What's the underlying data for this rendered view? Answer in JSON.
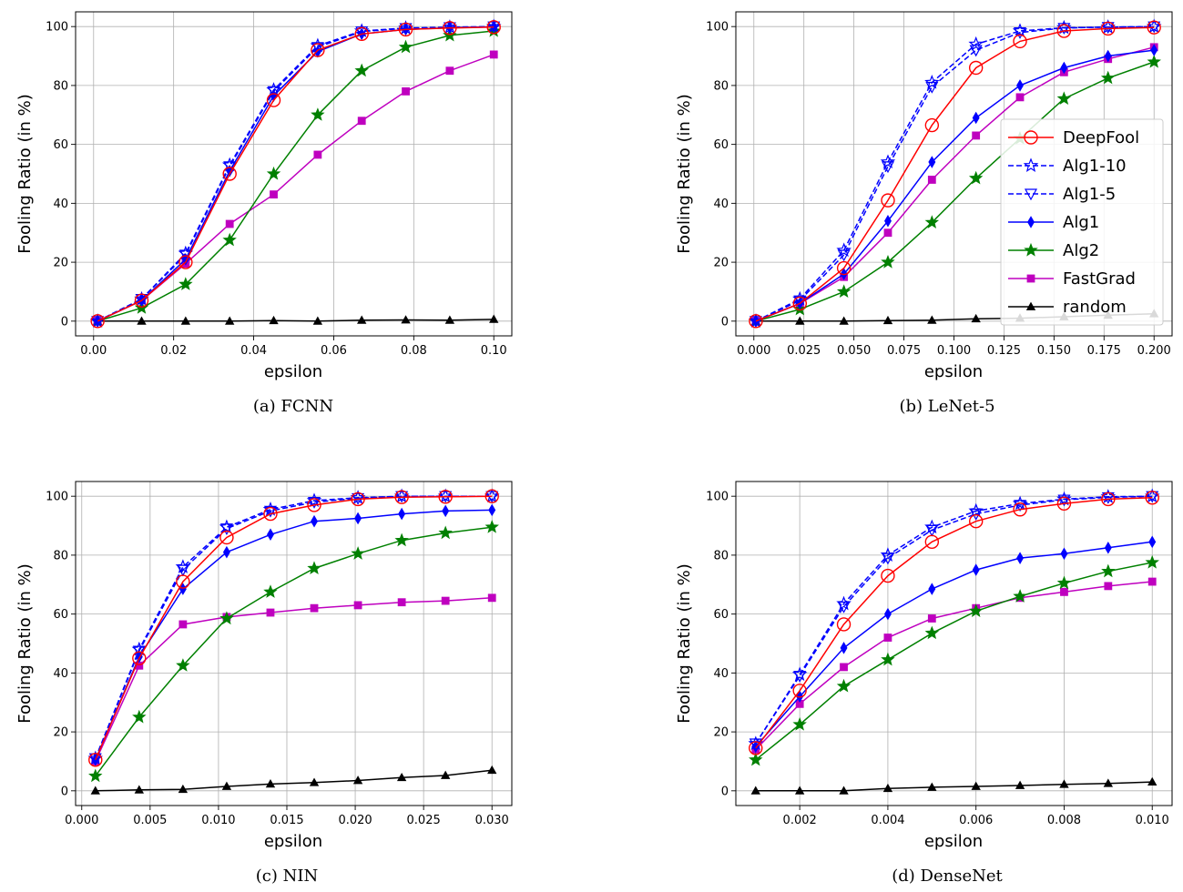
{
  "legend_entries": [
    {
      "name": "DeepFool",
      "color": "#ff0000",
      "marker": "circle-open",
      "dashed": false
    },
    {
      "name": "Alg1-10",
      "color": "#0000ff",
      "marker": "star-open",
      "dashed": true
    },
    {
      "name": "Alg1-5",
      "color": "#0000ff",
      "marker": "triangle-down-open",
      "dashed": true
    },
    {
      "name": "Alg1",
      "color": "#0000ff",
      "marker": "diamond",
      "dashed": false
    },
    {
      "name": "Alg2",
      "color": "#008000",
      "marker": "star",
      "dashed": false
    },
    {
      "name": "FastGrad",
      "color": "#bf00bf",
      "marker": "square",
      "dashed": false
    },
    {
      "name": "random",
      "color": "#000000",
      "marker": "triangle-up",
      "dashed": false
    }
  ],
  "chart_data": [
    {
      "type": "line",
      "caption": "(a) FCNN",
      "xlabel": "epsilon",
      "ylabel": "Fooling Ratio (in %)",
      "xlim": [
        -0.0045,
        0.1045
      ],
      "ylim": [
        -5,
        105
      ],
      "xticks": [
        0.0,
        0.02,
        0.04,
        0.06,
        0.08,
        0.1
      ],
      "xtick_labels": [
        "0.00",
        "0.02",
        "0.04",
        "0.06",
        "0.08",
        "0.10"
      ],
      "yticks": [
        0,
        20,
        40,
        60,
        80,
        100
      ],
      "ytick_labels": [
        "0",
        "20",
        "40",
        "60",
        "80",
        "100"
      ],
      "grid": true,
      "legend": "none",
      "x": [
        0.001,
        0.012,
        0.023,
        0.034,
        0.045,
        0.056,
        0.067,
        0.078,
        0.089,
        0.1
      ],
      "series": [
        {
          "name": "DeepFool",
          "values": [
            0,
            7,
            20,
            50,
            75,
            92,
            97.5,
            99,
            99.5,
            99.8
          ]
        },
        {
          "name": "Alg1-10",
          "values": [
            0,
            7.5,
            23,
            53,
            78.5,
            93.5,
            98.5,
            99.5,
            99.8,
            100
          ]
        },
        {
          "name": "Alg1-5",
          "values": [
            0,
            7.5,
            22.5,
            52.5,
            78,
            93,
            98.3,
            99.4,
            99.7,
            100
          ]
        },
        {
          "name": "Alg1",
          "values": [
            0,
            7,
            21,
            51,
            76.5,
            91.5,
            97.5,
            99,
            99.6,
            99.9
          ]
        },
        {
          "name": "Alg2",
          "values": [
            0,
            4.5,
            12.5,
            27.5,
            50,
            70,
            85,
            93,
            97,
            98.5
          ]
        },
        {
          "name": "FastGrad",
          "values": [
            0,
            7,
            19.5,
            33,
            43,
            56.5,
            68,
            78,
            85,
            90.5
          ]
        },
        {
          "name": "random",
          "values": [
            0,
            0,
            0,
            0,
            0.2,
            0,
            0.3,
            0.4,
            0.3,
            0.6
          ]
        }
      ]
    },
    {
      "type": "line",
      "caption": "(b) LeNet-5",
      "xlabel": "epsilon",
      "ylabel": "Fooling Ratio (in %)",
      "xlim": [
        -0.009,
        0.209
      ],
      "ylim": [
        -5,
        105
      ],
      "xticks": [
        0.0,
        0.025,
        0.05,
        0.075,
        0.1,
        0.125,
        0.15,
        0.175,
        0.2
      ],
      "xtick_labels": [
        "0.000",
        "0.025",
        "0.050",
        "0.075",
        "0.100",
        "0.125",
        "0.150",
        "0.175",
        "0.200"
      ],
      "yticks": [
        0,
        20,
        40,
        60,
        80,
        100
      ],
      "ytick_labels": [
        "0",
        "20",
        "40",
        "60",
        "80",
        "100"
      ],
      "grid": true,
      "legend": "center-right",
      "x": [
        0.001,
        0.023,
        0.045,
        0.067,
        0.089,
        0.111,
        0.133,
        0.155,
        0.177,
        0.2
      ],
      "series": [
        {
          "name": "DeepFool",
          "values": [
            0,
            6,
            18,
            41,
            66.5,
            86,
            95,
            98.5,
            99.3,
            99.7
          ]
        },
        {
          "name": "Alg1-10",
          "values": [
            0,
            7.5,
            24,
            54,
            81,
            94,
            98.5,
            99.6,
            99.8,
            100
          ]
        },
        {
          "name": "Alg1-5",
          "values": [
            0,
            7,
            22.5,
            52.5,
            79.5,
            92,
            98,
            99.5,
            99.8,
            100
          ]
        },
        {
          "name": "Alg1",
          "values": [
            0,
            6,
            16,
            34,
            54,
            69,
            80,
            86,
            90,
            92
          ]
        },
        {
          "name": "Alg2",
          "values": [
            0,
            4,
            10,
            20,
            33.5,
            48.5,
            62,
            75.5,
            82.5,
            88
          ]
        },
        {
          "name": "FastGrad",
          "values": [
            0,
            6,
            15,
            30,
            48,
            63,
            76,
            84.5,
            89,
            93
          ]
        },
        {
          "name": "random",
          "values": [
            0,
            0,
            0,
            0.2,
            0.3,
            0.8,
            1.0,
            1.5,
            2.0,
            2.5
          ]
        }
      ]
    },
    {
      "type": "line",
      "caption": "(c) NIN",
      "xlabel": "epsilon",
      "ylabel": "Fooling Ratio (in %)",
      "xlim": [
        -0.00045,
        0.03145
      ],
      "ylim": [
        -5,
        105
      ],
      "xticks": [
        0.0,
        0.005,
        0.01,
        0.015,
        0.02,
        0.025,
        0.03
      ],
      "xtick_labels": [
        "0.000",
        "0.005",
        "0.010",
        "0.015",
        "0.020",
        "0.025",
        "0.030"
      ],
      "yticks": [
        0,
        20,
        40,
        60,
        80,
        100
      ],
      "ytick_labels": [
        "0",
        "20",
        "40",
        "60",
        "80",
        "100"
      ],
      "grid": true,
      "legend": "none",
      "x": [
        0.001,
        0.0042,
        0.0074,
        0.0106,
        0.0138,
        0.017,
        0.0202,
        0.0234,
        0.0266,
        0.03
      ],
      "series": [
        {
          "name": "DeepFool",
          "values": [
            10.5,
            45,
            71,
            86,
            94,
            97,
            99,
            99.7,
            99.8,
            100
          ]
        },
        {
          "name": "Alg1-10",
          "values": [
            11,
            48,
            76,
            89.5,
            95.5,
            98.5,
            99.5,
            100,
            100,
            100
          ]
        },
        {
          "name": "Alg1-5",
          "values": [
            11,
            47.5,
            75,
            89,
            95,
            98,
            99.3,
            100,
            100,
            100
          ]
        },
        {
          "name": "Alg1",
          "values": [
            10.5,
            45.5,
            68.5,
            81,
            87,
            91.5,
            92.5,
            94,
            95,
            95.3
          ]
        },
        {
          "name": "Alg2",
          "values": [
            5,
            25,
            42.5,
            58.5,
            67.5,
            75.5,
            80.5,
            85,
            87.5,
            89.5
          ]
        },
        {
          "name": "FastGrad",
          "values": [
            10,
            42.5,
            56.5,
            59,
            60.5,
            62,
            63,
            64,
            64.5,
            65.5
          ]
        },
        {
          "name": "random",
          "values": [
            0,
            0.3,
            0.5,
            1.5,
            2.3,
            2.8,
            3.5,
            4.5,
            5.2,
            7
          ]
        }
      ]
    },
    {
      "type": "line",
      "caption": "(d) DenseNet",
      "xlabel": "epsilon",
      "ylabel": "Fooling Ratio (in %)",
      "xlim": [
        0.00055,
        0.01045
      ],
      "ylim": [
        -5,
        105
      ],
      "xticks": [
        0.002,
        0.004,
        0.006,
        0.008,
        0.01
      ],
      "xtick_labels": [
        "0.002",
        "0.004",
        "0.006",
        "0.008",
        "0.010"
      ],
      "yticks": [
        0,
        20,
        40,
        60,
        80,
        100
      ],
      "ytick_labels": [
        "0",
        "20",
        "40",
        "60",
        "80",
        "100"
      ],
      "grid": true,
      "legend": "none",
      "x": [
        0.001,
        0.002,
        0.003,
        0.004,
        0.005,
        0.006,
        0.007,
        0.008,
        0.009,
        0.01
      ],
      "series": [
        {
          "name": "DeepFool",
          "values": [
            14.5,
            34,
            56.5,
            73,
            84.5,
            91.5,
            95.5,
            97.5,
            99,
            99.5
          ]
        },
        {
          "name": "Alg1-10",
          "values": [
            16,
            39.5,
            63.5,
            80,
            89.5,
            95,
            97.5,
            99,
            99.8,
            100
          ]
        },
        {
          "name": "Alg1-5",
          "values": [
            16,
            39,
            62.5,
            79,
            88.5,
            94,
            97,
            98.8,
            99.6,
            100
          ]
        },
        {
          "name": "Alg1",
          "values": [
            15,
            32,
            48.5,
            60,
            68.5,
            75,
            79,
            80.5,
            82.5,
            84.5
          ]
        },
        {
          "name": "Alg2",
          "values": [
            10.5,
            22.5,
            35.5,
            44.5,
            53.5,
            61,
            66,
            70.5,
            74.5,
            77.5
          ]
        },
        {
          "name": "FastGrad",
          "values": [
            14,
            29.5,
            42,
            52,
            58.5,
            62,
            65.5,
            67.5,
            69.5,
            71
          ]
        },
        {
          "name": "random",
          "values": [
            0,
            0,
            0,
            0.8,
            1.2,
            1.5,
            1.8,
            2.2,
            2.5,
            3
          ]
        }
      ]
    }
  ]
}
